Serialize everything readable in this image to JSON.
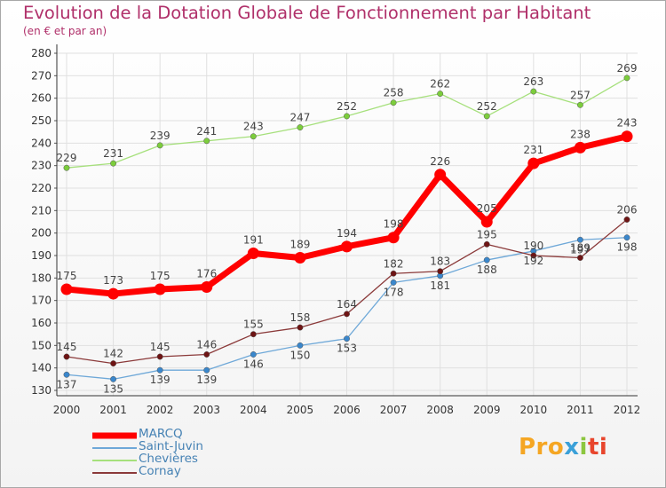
{
  "chart_data": {
    "type": "line",
    "title": "Evolution de la Dotation Globale de Fonctionnement par Habitant",
    "subtitle": "(en € et par an)",
    "xlabel": "",
    "ylabel": "",
    "ylim": [
      130,
      280
    ],
    "ytick_step": 10,
    "grid": true,
    "legend_position": "bottom-left",
    "categories": [
      "2000",
      "2001",
      "2002",
      "2003",
      "2004",
      "2005",
      "2006",
      "2007",
      "2008",
      "2009",
      "2010",
      "2011",
      "2012"
    ],
    "series": [
      {
        "name": "MARCQ",
        "color": "#ff0000",
        "point_color": "#ff0000",
        "values": [
          175,
          173,
          175,
          176,
          191,
          189,
          194,
          198,
          226,
          205,
          231,
          238,
          243
        ]
      },
      {
        "name": "Saint-Juvin",
        "color": "#6ea8d8",
        "point_color": "#3a87cc",
        "values": [
          137,
          135,
          139,
          139,
          146,
          150,
          153,
          178,
          181,
          188,
          192,
          197,
          198
        ]
      },
      {
        "name": "Chevières",
        "color": "#a6e07c",
        "point_color": "#7ccd3c",
        "values": [
          229,
          231,
          239,
          241,
          243,
          247,
          252,
          258,
          262,
          252,
          263,
          257,
          269
        ]
      },
      {
        "name": "Cornay",
        "color": "#8b3a3a",
        "point_color": "#6e1414",
        "values": [
          145,
          142,
          145,
          146,
          155,
          158,
          164,
          182,
          183,
          195,
          190,
          189,
          206
        ]
      }
    ]
  },
  "brand": {
    "p1": "Pro",
    "p2": "x",
    "p3": "i",
    "p4": "ti"
  }
}
